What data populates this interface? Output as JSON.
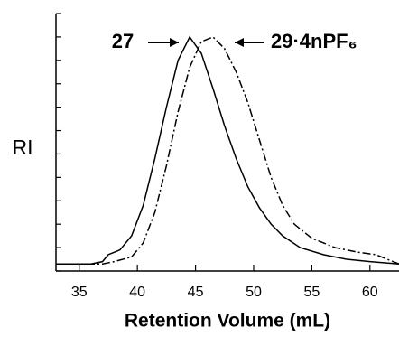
{
  "chart_data": {
    "type": "line",
    "x_label": "Retention Volume (mL)",
    "y_label": "RI",
    "xlim": [
      33,
      62.5
    ],
    "xticks": [
      35,
      40,
      45,
      50,
      55,
      60
    ],
    "ylim": [
      0,
      1.1
    ],
    "yticks": [
      0,
      0.1,
      0.2,
      0.3,
      0.4,
      0.5,
      0.6,
      0.7,
      0.8,
      0.9,
      1.0,
      1.1
    ],
    "series": [
      {
        "name": "27",
        "color": "#000000",
        "dash": "solid",
        "x": [
          33,
          36,
          37,
          37.5,
          38.5,
          39.5,
          40.5,
          41.5,
          42.5,
          43.5,
          44.5,
          45.5,
          46.5,
          47.5,
          48.5,
          49.5,
          50.5,
          51.5,
          52.5,
          54,
          56,
          58,
          60,
          62.5
        ],
        "values": [
          0.03,
          0.03,
          0.04,
          0.07,
          0.09,
          0.15,
          0.28,
          0.48,
          0.7,
          0.9,
          1.0,
          0.93,
          0.78,
          0.62,
          0.48,
          0.36,
          0.27,
          0.2,
          0.15,
          0.1,
          0.07,
          0.05,
          0.04,
          0.03
        ]
      },
      {
        "name": "29·4nPF₆",
        "color": "#000000",
        "dash": "dashdot",
        "x": [
          33,
          37,
          38,
          39.5,
          40.5,
          41.5,
          42.5,
          43.5,
          44.5,
          45.5,
          46.5,
          47.5,
          48.5,
          49.5,
          50.5,
          51.5,
          52.5,
          53.5,
          55,
          57,
          59,
          60.5,
          61.5,
          62.5
        ],
        "values": [
          0.03,
          0.03,
          0.04,
          0.06,
          0.12,
          0.25,
          0.45,
          0.68,
          0.87,
          0.98,
          1.0,
          0.95,
          0.85,
          0.72,
          0.56,
          0.4,
          0.28,
          0.2,
          0.14,
          0.1,
          0.08,
          0.07,
          0.05,
          0.03
        ]
      }
    ]
  }
}
